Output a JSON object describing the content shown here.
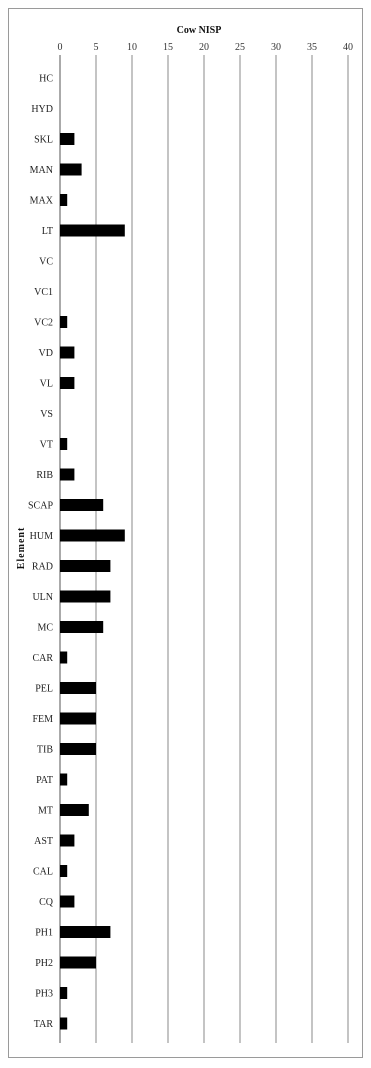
{
  "chart_data": {
    "type": "bar",
    "orientation": "horizontal",
    "title": "",
    "xlabel": "Cow NISP",
    "ylabel": "Element",
    "xlim": [
      0,
      40
    ],
    "xticks": [
      0,
      5,
      10,
      15,
      20,
      25,
      30,
      35,
      40
    ],
    "x_axis_position": "top",
    "grid": true,
    "legend": "none",
    "bar_color": "#000000",
    "categories": [
      "HC",
      "HYD",
      "SKL",
      "MAN",
      "MAX",
      "LT",
      "VC",
      "VC1",
      "VC2",
      "VD",
      "VL",
      "VS",
      "VT",
      "RIB",
      "SCAP",
      "HUM",
      "RAD",
      "ULN",
      "MC",
      "CAR",
      "PEL",
      "FEM",
      "TIB",
      "PAT",
      "MT",
      "AST",
      "CAL",
      "CQ",
      "PH1",
      "PH2",
      "PH3",
      "TAR"
    ],
    "values": [
      0,
      0,
      2,
      3,
      1,
      9,
      0,
      0,
      1,
      2,
      2,
      0,
      1,
      2,
      6,
      9,
      7,
      7,
      6,
      1,
      5,
      5,
      5,
      1,
      4,
      2,
      1,
      2,
      7,
      5,
      1,
      1
    ]
  }
}
